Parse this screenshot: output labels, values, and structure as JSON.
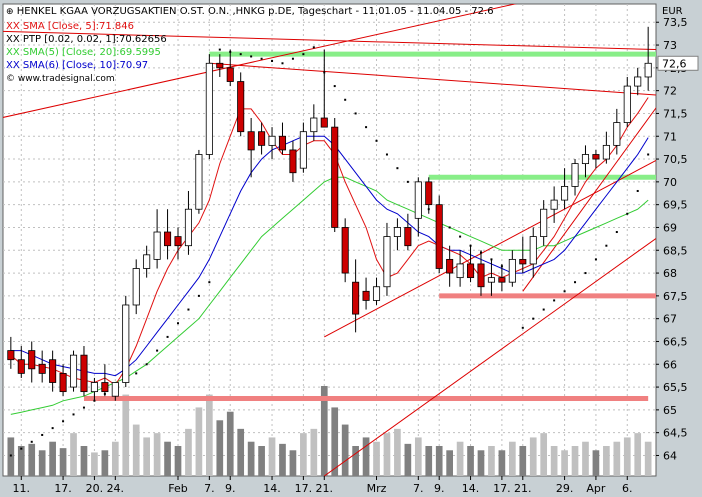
{
  "chart_data": {
    "type": "candlestick",
    "title": "HENKEL KGAA VORZUGSAKTIEN O.ST. O.N. ,HNKG p.DE, Tageschart - 11.01.05 - 11.04.05 - 72.6",
    "source": "www.tradesignal.com",
    "currency": "EUR",
    "y_ticks": [
      64,
      64.5,
      65,
      65.5,
      66,
      66.5,
      67,
      67.5,
      68,
      68.5,
      69,
      69.5,
      70,
      70.5,
      71,
      71.5,
      72,
      72.5,
      73,
      73.5
    ],
    "y_tick_labels": [
      "64",
      "64,5",
      "65",
      "65,5",
      "66",
      "66,5",
      "67",
      "67,5",
      "68",
      "68,5",
      "69",
      "69,5",
      "70",
      "70,5",
      "71",
      "71,5",
      "72",
      "72,5",
      "73",
      "73,5"
    ],
    "ylim": [
      63.55,
      73.9
    ],
    "last_price": 72.6,
    "last_price_label": "72,6",
    "x_tick_labels": [
      "11.",
      "17.",
      "20.",
      "24.",
      "Feb",
      "7.",
      "9.",
      "14.",
      "17.",
      "21.",
      "Mrz",
      "7.",
      "9.",
      "14.",
      "17.",
      "21.",
      "29.",
      "Apr",
      "6."
    ],
    "x_tick_index": [
      1,
      5,
      8,
      10,
      16,
      19,
      21,
      25,
      28,
      30,
      35,
      39,
      41,
      44,
      47,
      49,
      53,
      56,
      59
    ],
    "legend": [
      {
        "text": "XX SMA [Close, 5]:71.846",
        "color": "#e01010"
      },
      {
        "text": "XX PTP [0.02, 0.02, 1]:70.62656",
        "color": "#000000"
      },
      {
        "text": "XX SMA(5) [Close, 20]:69.5995",
        "color": "#33cc33"
      },
      {
        "text": "XX SMA(6) [Close, 10]:70.97",
        "color": "#0000cc"
      }
    ],
    "candles": [
      {
        "o": 66.3,
        "h": 66.6,
        "l": 65.9,
        "c": 66.1
      },
      {
        "o": 66.1,
        "h": 66.4,
        "l": 65.7,
        "c": 65.8
      },
      {
        "o": 66.3,
        "h": 66.5,
        "l": 65.6,
        "c": 65.9
      },
      {
        "o": 66.0,
        "h": 66.3,
        "l": 65.6,
        "c": 65.8
      },
      {
        "o": 66.1,
        "h": 66.3,
        "l": 65.4,
        "c": 65.6
      },
      {
        "o": 65.8,
        "h": 66.0,
        "l": 65.3,
        "c": 65.4
      },
      {
        "o": 65.5,
        "h": 66.3,
        "l": 65.4,
        "c": 66.2
      },
      {
        "o": 66.2,
        "h": 66.4,
        "l": 65.3,
        "c": 65.4
      },
      {
        "o": 65.4,
        "h": 65.7,
        "l": 65.2,
        "c": 65.6
      },
      {
        "o": 65.6,
        "h": 66.0,
        "l": 65.3,
        "c": 65.4
      },
      {
        "o": 65.3,
        "h": 65.6,
        "l": 65.2,
        "c": 65.6
      },
      {
        "o": 65.6,
        "h": 67.5,
        "l": 65.5,
        "c": 67.3
      },
      {
        "o": 67.3,
        "h": 68.3,
        "l": 67.1,
        "c": 68.1
      },
      {
        "o": 68.1,
        "h": 68.6,
        "l": 67.9,
        "c": 68.4
      },
      {
        "o": 68.3,
        "h": 69.4,
        "l": 68.1,
        "c": 68.9
      },
      {
        "o": 68.9,
        "h": 69.4,
        "l": 68.3,
        "c": 68.6
      },
      {
        "o": 68.8,
        "h": 69.0,
        "l": 68.3,
        "c": 68.6
      },
      {
        "o": 68.6,
        "h": 69.8,
        "l": 68.4,
        "c": 69.4
      },
      {
        "o": 69.4,
        "h": 70.7,
        "l": 69.3,
        "c": 70.6
      },
      {
        "o": 70.6,
        "h": 72.8,
        "l": 70.5,
        "c": 72.6
      },
      {
        "o": 72.6,
        "h": 72.8,
        "l": 72.3,
        "c": 72.5
      },
      {
        "o": 72.5,
        "h": 72.9,
        "l": 72.1,
        "c": 72.2
      },
      {
        "o": 72.2,
        "h": 72.4,
        "l": 71.0,
        "c": 71.1
      },
      {
        "o": 71.1,
        "h": 71.4,
        "l": 70.1,
        "c": 70.7
      },
      {
        "o": 71.1,
        "h": 71.3,
        "l": 70.6,
        "c": 70.8
      },
      {
        "o": 70.8,
        "h": 71.2,
        "l": 70.5,
        "c": 71.0
      },
      {
        "o": 71.0,
        "h": 71.3,
        "l": 70.6,
        "c": 70.7
      },
      {
        "o": 70.7,
        "h": 70.9,
        "l": 70.0,
        "c": 70.2
      },
      {
        "o": 70.3,
        "h": 71.3,
        "l": 70.2,
        "c": 71.1
      },
      {
        "o": 71.1,
        "h": 71.7,
        "l": 70.9,
        "c": 71.4
      },
      {
        "o": 71.4,
        "h": 72.9,
        "l": 71.3,
        "c": 71.2
      },
      {
        "o": 71.2,
        "h": 71.4,
        "l": 68.9,
        "c": 69.0
      },
      {
        "o": 69.0,
        "h": 69.2,
        "l": 67.8,
        "c": 68.0
      },
      {
        "o": 67.8,
        "h": 68.3,
        "l": 66.7,
        "c": 67.1
      },
      {
        "o": 67.6,
        "h": 67.9,
        "l": 67.2,
        "c": 67.4
      },
      {
        "o": 67.4,
        "h": 67.9,
        "l": 67.3,
        "c": 67.7
      },
      {
        "o": 67.7,
        "h": 69.1,
        "l": 67.5,
        "c": 68.8
      },
      {
        "o": 68.8,
        "h": 69.2,
        "l": 68.5,
        "c": 69.0
      },
      {
        "o": 69.0,
        "h": 69.3,
        "l": 68.5,
        "c": 68.6
      },
      {
        "o": 69.2,
        "h": 70.1,
        "l": 68.8,
        "c": 70.0
      },
      {
        "o": 70.0,
        "h": 70.1,
        "l": 69.3,
        "c": 69.5
      },
      {
        "o": 69.5,
        "h": 69.7,
        "l": 68.0,
        "c": 68.1
      },
      {
        "o": 68.3,
        "h": 68.6,
        "l": 67.7,
        "c": 68.0
      },
      {
        "o": 67.9,
        "h": 68.5,
        "l": 67.7,
        "c": 68.2
      },
      {
        "o": 68.2,
        "h": 68.6,
        "l": 67.8,
        "c": 67.9
      },
      {
        "o": 68.2,
        "h": 68.5,
        "l": 67.5,
        "c": 67.7
      },
      {
        "o": 67.8,
        "h": 68.3,
        "l": 67.5,
        "c": 67.9
      },
      {
        "o": 67.9,
        "h": 68.2,
        "l": 67.6,
        "c": 67.8
      },
      {
        "o": 67.8,
        "h": 68.5,
        "l": 67.7,
        "c": 68.3
      },
      {
        "o": 68.3,
        "h": 68.8,
        "l": 68.0,
        "c": 68.2
      },
      {
        "o": 68.2,
        "h": 69.0,
        "l": 67.9,
        "c": 68.8
      },
      {
        "o": 68.8,
        "h": 69.6,
        "l": 68.6,
        "c": 69.4
      },
      {
        "o": 69.4,
        "h": 69.9,
        "l": 69.1,
        "c": 69.6
      },
      {
        "o": 69.6,
        "h": 70.3,
        "l": 69.4,
        "c": 69.9
      },
      {
        "o": 69.9,
        "h": 70.5,
        "l": 69.7,
        "c": 70.4
      },
      {
        "o": 70.4,
        "h": 70.8,
        "l": 70.1,
        "c": 70.6
      },
      {
        "o": 70.6,
        "h": 70.7,
        "l": 70.3,
        "c": 70.5
      },
      {
        "o": 70.5,
        "h": 71.1,
        "l": 70.4,
        "c": 70.8
      },
      {
        "o": 70.8,
        "h": 71.6,
        "l": 70.6,
        "c": 71.3
      },
      {
        "o": 71.3,
        "h": 72.3,
        "l": 71.2,
        "c": 72.1
      },
      {
        "o": 72.1,
        "h": 72.5,
        "l": 71.9,
        "c": 72.3
      },
      {
        "o": 72.3,
        "h": 73.4,
        "l": 72.0,
        "c": 72.6
      }
    ],
    "volume": [
      18,
      14,
      15,
      12,
      16,
      13,
      20,
      14,
      11,
      12,
      16,
      38,
      24,
      18,
      20,
      16,
      14,
      22,
      32,
      38,
      26,
      30,
      22,
      16,
      14,
      18,
      15,
      12,
      20,
      22,
      42,
      32,
      24,
      14,
      18,
      16,
      20,
      22,
      15,
      18,
      14,
      14,
      12,
      16,
      14,
      12,
      14,
      12,
      16,
      14,
      18,
      20,
      14,
      12,
      14,
      16,
      12,
      14,
      16,
      18,
      20,
      16
    ],
    "sma5": [
      66.2,
      66.0,
      66.0,
      65.95,
      65.9,
      65.8,
      65.7,
      65.65,
      65.6,
      65.7,
      65.55,
      65.9,
      66.4,
      67.0,
      67.6,
      68.1,
      68.5,
      68.8,
      69.1,
      69.6,
      70.4,
      71.0,
      71.6,
      71.6,
      71.3,
      70.9,
      70.6,
      70.6,
      70.8,
      70.9,
      70.9,
      70.6,
      70.0,
      69.5,
      69.0,
      68.3,
      67.9,
      68.0,
      68.3,
      68.6,
      68.7,
      68.6,
      68.5,
      68.4,
      68.2,
      67.9,
      68.0,
      67.9,
      68.0,
      68.1,
      68.2,
      68.5,
      68.8,
      69.2,
      69.6,
      70.0,
      70.3,
      70.5,
      70.8,
      71.2,
      71.5,
      71.85
    ],
    "sma10": [
      66.3,
      66.3,
      66.2,
      66.1,
      66.0,
      65.95,
      65.9,
      65.85,
      65.8,
      65.8,
      65.75,
      65.9,
      66.1,
      66.4,
      66.7,
      67.0,
      67.3,
      67.6,
      67.9,
      68.3,
      68.8,
      69.3,
      69.8,
      70.2,
      70.5,
      70.7,
      70.8,
      70.9,
      71.0,
      71.0,
      71.0,
      70.8,
      70.5,
      70.2,
      69.9,
      69.6,
      69.4,
      69.3,
      69.1,
      68.9,
      68.8,
      68.6,
      68.5,
      68.5,
      68.4,
      68.3,
      68.2,
      68.1,
      68.0,
      68.0,
      68.1,
      68.2,
      68.3,
      68.5,
      68.8,
      69.1,
      69.4,
      69.7,
      70.0,
      70.3,
      70.6,
      70.97
    ],
    "sma20": [
      64.9,
      64.95,
      65.0,
      65.05,
      65.1,
      65.2,
      65.25,
      65.3,
      65.4,
      65.5,
      65.6,
      65.7,
      65.85,
      66.0,
      66.2,
      66.4,
      66.6,
      66.8,
      67.0,
      67.3,
      67.6,
      67.9,
      68.2,
      68.5,
      68.8,
      69.0,
      69.2,
      69.4,
      69.6,
      69.8,
      70.0,
      70.1,
      70.1,
      70.0,
      69.9,
      69.8,
      69.6,
      69.5,
      69.4,
      69.3,
      69.2,
      69.1,
      69.0,
      68.9,
      68.8,
      68.7,
      68.6,
      68.5,
      68.5,
      68.5,
      68.5,
      68.6,
      68.6,
      68.7,
      68.8,
      68.9,
      69.0,
      69.1,
      69.2,
      69.3,
      69.4,
      69.6
    ],
    "ptp": [
      64.0,
      64.15,
      64.3,
      64.45,
      64.6,
      64.75,
      64.9,
      65.05,
      65.2,
      65.35,
      65.5,
      65.65,
      65.8,
      66.0,
      66.3,
      66.6,
      66.9,
      67.2,
      67.5,
      67.8,
      72.9,
      72.85,
      72.8,
      72.75,
      72.7,
      72.65,
      72.6,
      72.7,
      72.8,
      72.95,
      72.4,
      72.1,
      71.8,
      71.5,
      71.2,
      70.9,
      70.6,
      70.3,
      70.0,
      69.7,
      69.4,
      69.2,
      69.0,
      68.8,
      68.6,
      68.45,
      68.3,
      68.15,
      68.0,
      66.8,
      67.0,
      67.2,
      67.4,
      67.6,
      67.8,
      68.0,
      68.3,
      68.6,
      68.9,
      69.3,
      69.8,
      70.6
    ],
    "hlines": [
      {
        "y": 72.8,
        "color": "#88ee88",
        "x0": 19,
        "x1": 62
      },
      {
        "y": 70.1,
        "color": "#88ee88",
        "x0": 40,
        "x1": 62
      },
      {
        "y": 67.5,
        "color": "#f08080",
        "x0": 41,
        "x1": 62
      },
      {
        "y": 65.25,
        "color": "#f08080",
        "x0": 7,
        "x1": 60
      }
    ],
    "trendlines": [
      {
        "x0": -1,
        "y0": 71.4,
        "x1": 62,
        "y1": 74.6,
        "color": "#dd0000"
      },
      {
        "x0": -1,
        "y0": 73.3,
        "x1": 62,
        "y1": 72.9,
        "color": "#dd0000"
      },
      {
        "x0": 19,
        "y0": 72.6,
        "x1": 62,
        "y1": 71.9,
        "color": "#dd0000"
      },
      {
        "x0": 30,
        "y0": 66.6,
        "x1": 62,
        "y1": 70.5,
        "color": "#dd0000"
      },
      {
        "x0": 30,
        "y0": 63.55,
        "x1": 62,
        "y1": 68.8,
        "color": "#dd0000"
      },
      {
        "x0": 49,
        "y0": 67.6,
        "x1": 62,
        "y1": 71.7,
        "color": "#dd0000"
      }
    ]
  }
}
